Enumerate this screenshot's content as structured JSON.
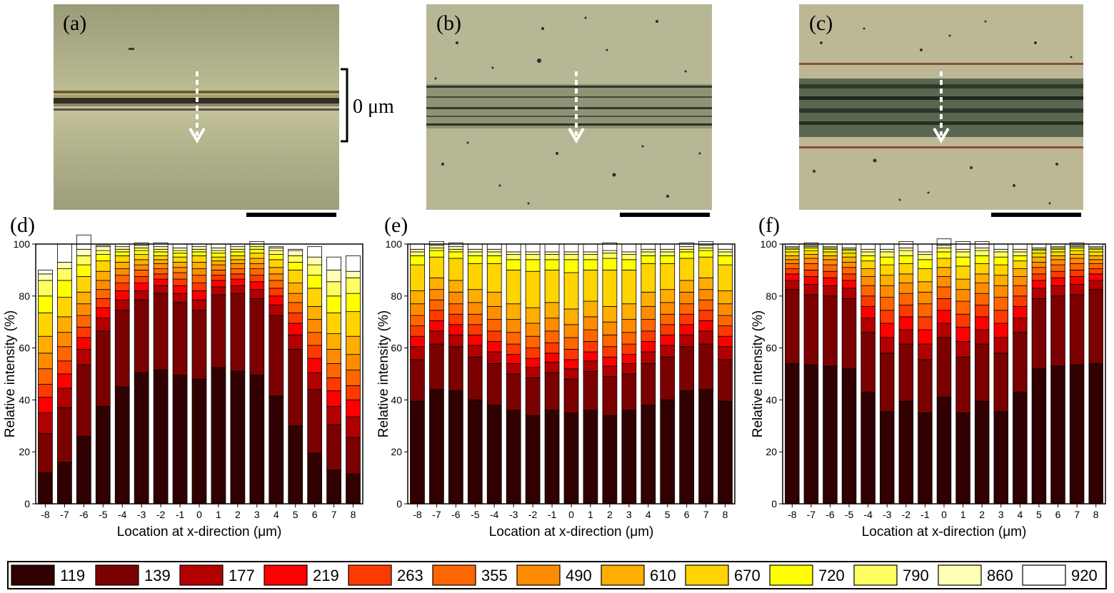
{
  "photos": [
    {
      "letter": "(a)",
      "bg": "#a4a582"
    },
    {
      "letter": "(b)",
      "bg": "#b6b594"
    },
    {
      "letter": "(c)",
      "bg": "#bdb996"
    }
  ],
  "scale_bar_label": "0 μm",
  "colors": [
    "#310000",
    "#7b0000",
    "#b20000",
    "#ff0000",
    "#ff3a00",
    "#ff6600",
    "#ff8c00",
    "#ffad00",
    "#ffd400",
    "#ffff00",
    "#ffff63",
    "#ffffb4",
    "#ffffff"
  ],
  "chart_data": [
    {
      "panel": "(d)",
      "type": "bar",
      "stacked": true,
      "title": "",
      "xlabel": "Location at x-direction (μm)",
      "ylabel": "Relative intensity (%)",
      "ylim": [
        0,
        100
      ],
      "yticks": [
        0,
        20,
        40,
        60,
        80,
        100
      ],
      "categories": [
        "-8",
        "-7",
        "-6",
        "-5",
        "-4",
        "-3",
        "-2",
        "-1",
        "0",
        "1",
        "2",
        "3",
        "4",
        "5",
        "6",
        "7",
        "8"
      ],
      "series": [
        {
          "name": "119",
          "values": [
            12,
            16,
            26,
            37.5,
            45,
            50.5,
            51.5,
            49.5,
            48,
            52.5,
            51,
            49.5,
            41.5,
            30,
            19.5,
            13,
            11.5
          ]
        },
        {
          "name": "139",
          "values": [
            15,
            21,
            27.5,
            29,
            29.5,
            28,
            29.5,
            28,
            26.5,
            28,
            30,
            29.5,
            31,
            29.5,
            24.5,
            17.5,
            14
          ]
        },
        {
          "name": "177",
          "values": [
            8,
            7.5,
            6,
            5,
            4,
            3.5,
            3,
            3.5,
            4,
            3,
            3,
            3.5,
            4,
            5.5,
            6.5,
            7,
            8
          ]
        },
        {
          "name": "219",
          "values": [
            6,
            5.5,
            4.5,
            4,
            3.5,
            3,
            2.5,
            3,
            3.5,
            2.5,
            2.5,
            3,
            3.5,
            4.5,
            5.5,
            6,
            6.5
          ]
        },
        {
          "name": "263",
          "values": [
            5,
            5,
            4,
            3.5,
            3,
            2.5,
            2,
            2.5,
            3,
            2,
            2,
            2.5,
            3,
            4,
            5,
            5,
            5.5
          ]
        },
        {
          "name": "355",
          "values": [
            6,
            5.5,
            4.5,
            3.5,
            3,
            2.5,
            2,
            2.5,
            3,
            2,
            2,
            2.5,
            3,
            4,
            5,
            5.5,
            6
          ]
        },
        {
          "name": "490",
          "values": [
            6,
            5.5,
            4.5,
            3.5,
            2.5,
            2,
            2,
            2,
            2.5,
            2,
            2,
            2,
            2.5,
            3.5,
            5,
            5.5,
            6
          ]
        },
        {
          "name": "610",
          "values": [
            6.5,
            6,
            4.5,
            3.5,
            2.5,
            2,
            1.5,
            2,
            2.5,
            1.5,
            1.5,
            2,
            2.5,
            4,
            5,
            6,
            7
          ]
        },
        {
          "name": "670",
          "values": [
            9,
            7.5,
            6,
            4,
            2.5,
            2,
            1.5,
            2,
            2.5,
            1.5,
            1.5,
            2,
            3,
            5,
            7,
            8,
            9.5
          ]
        },
        {
          "name": "720",
          "values": [
            6.5,
            6.5,
            4.5,
            2.5,
            1.5,
            1.5,
            1.5,
            1.5,
            1.5,
            1.5,
            1.5,
            1.5,
            2,
            3,
            5,
            6.5,
            7
          ]
        },
        {
          "name": "790",
          "values": [
            6,
            4.5,
            3.5,
            1.5,
            1,
            1,
            1,
            1,
            1,
            1,
            1,
            1,
            1.5,
            2.5,
            4,
            5.5,
            6
          ]
        },
        {
          "name": "860",
          "values": [
            2.5,
            2.5,
            2.5,
            1.5,
            1,
            1,
            1,
            1,
            1,
            1,
            1,
            1,
            1,
            2,
            3,
            4.5,
            2.5
          ]
        },
        {
          "name": "920",
          "values": [
            1.5,
            7,
            5.5,
            0.5,
            1,
            1,
            1.5,
            1.5,
            1,
            1.5,
            1,
            1,
            0.5,
            0.5,
            4,
            5,
            6
          ]
        }
      ]
    },
    {
      "panel": "(e)",
      "type": "bar",
      "stacked": true,
      "title": "",
      "xlabel": "Location at x-direction (μm)",
      "ylabel": "Relative intensity (%)",
      "ylim": [
        0,
        100
      ],
      "yticks": [
        0,
        20,
        40,
        60,
        80,
        100
      ],
      "categories": [
        "-8",
        "-7",
        "-6",
        "-5",
        "-4",
        "-3",
        "-2",
        "-1",
        "0",
        "1",
        "2",
        "3",
        "4",
        "5",
        "6",
        "7",
        "8"
      ],
      "series": [
        {
          "name": "119",
          "values": [
            39.5,
            44,
            43.5,
            40,
            38,
            36,
            34,
            36,
            35,
            36,
            34,
            36,
            38,
            40,
            43.5,
            44,
            39.5
          ]
        },
        {
          "name": "139",
          "values": [
            16,
            17.5,
            17,
            16.5,
            16,
            14,
            14.5,
            14.5,
            13,
            15,
            15,
            14,
            16,
            16.5,
            17,
            17.5,
            16
          ]
        },
        {
          "name": "177",
          "values": [
            5,
            5,
            4.5,
            4.5,
            4.5,
            4,
            4,
            4,
            4,
            4,
            4,
            4,
            4.5,
            4.5,
            4.5,
            5,
            5
          ]
        },
        {
          "name": "219",
          "values": [
            4,
            4,
            4,
            4,
            4,
            3.5,
            3.5,
            3.5,
            3.5,
            3.5,
            3.5,
            3.5,
            4,
            4,
            4,
            4,
            4
          ]
        },
        {
          "name": "263",
          "values": [
            4,
            4,
            4,
            4,
            4,
            4,
            4,
            4,
            4,
            4,
            4,
            4,
            4,
            4,
            4,
            4,
            4
          ]
        },
        {
          "name": "355",
          "values": [
            4,
            4,
            4,
            4,
            4.5,
            4.5,
            4.5,
            4.5,
            4.5,
            4.5,
            4.5,
            4.5,
            4.5,
            4,
            4,
            4,
            4
          ]
        },
        {
          "name": "490",
          "values": [
            4.5,
            4,
            4.5,
            4.5,
            5,
            5,
            5,
            5,
            5,
            5,
            5,
            5,
            5,
            4.5,
            4.5,
            4,
            4.5
          ]
        },
        {
          "name": "610",
          "values": [
            5,
            4.5,
            4.5,
            5,
            5.5,
            6,
            6,
            6,
            6,
            6,
            6,
            6,
            5.5,
            5,
            4.5,
            4.5,
            5
          ]
        },
        {
          "name": "670",
          "values": [
            10,
            8,
            8.5,
            10,
            11,
            13,
            14,
            12.5,
            14,
            12,
            14,
            13,
            11,
            10,
            8.5,
            8,
            10
          ]
        },
        {
          "name": "720",
          "values": [
            3.5,
            2.5,
            2.5,
            3,
            3,
            4,
            4.5,
            4,
            5,
            4,
            4.5,
            4,
            3,
            3,
            2.5,
            2.5,
            3.5
          ]
        },
        {
          "name": "790",
          "values": [
            1.5,
            1,
            1,
            1.5,
            1.5,
            2,
            2,
            2,
            2,
            2,
            2,
            2,
            1.5,
            1.5,
            1,
            1,
            1.5
          ]
        },
        {
          "name": "860",
          "values": [
            1,
            1,
            1,
            1,
            1,
            1,
            1,
            1,
            1,
            1,
            1,
            1,
            1,
            1,
            1,
            1,
            1
          ]
        },
        {
          "name": "920",
          "values": [
            2,
            1.5,
            1.5,
            2,
            2,
            3,
            3,
            3,
            3,
            3,
            3,
            3,
            2,
            2,
            1.5,
            1.5,
            2
          ]
        }
      ]
    },
    {
      "panel": "(f)",
      "type": "bar",
      "stacked": true,
      "title": "",
      "xlabel": "Location at x-direction (μm)",
      "ylabel": "Relative intensity (%)",
      "ylim": [
        0,
        100
      ],
      "yticks": [
        0,
        20,
        40,
        60,
        80,
        100
      ],
      "categories": [
        "-8",
        "-7",
        "-6",
        "-5",
        "-4",
        "-3",
        "-2",
        "-1",
        "0",
        "1",
        "2",
        "3",
        "4",
        "5",
        "6",
        "7",
        "8"
      ],
      "series": [
        {
          "name": "119",
          "values": [
            54,
            53.5,
            53,
            52,
            43,
            35.5,
            39.5,
            35,
            41,
            35,
            39.5,
            35.5,
            43,
            52,
            53,
            53.5,
            54
          ]
        },
        {
          "name": "139",
          "values": [
            28.5,
            27,
            27,
            27,
            23,
            22.5,
            22,
            20.5,
            23,
            21.5,
            22,
            22.5,
            23,
            27,
            27,
            27,
            28.5
          ]
        },
        {
          "name": "177",
          "values": [
            3.5,
            4,
            4,
            4,
            5.5,
            6,
            5.5,
            6,
            5.5,
            6,
            5.5,
            6,
            5.5,
            4,
            4,
            4,
            3.5
          ]
        },
        {
          "name": "219",
          "values": [
            2.5,
            3,
            3,
            3,
            4.5,
            5.5,
            5,
            5.5,
            5,
            5.5,
            5,
            5.5,
            4.5,
            3,
            3,
            3,
            2.5
          ]
        },
        {
          "name": "263",
          "values": [
            2,
            2.5,
            2.5,
            2.5,
            4,
            5,
            4.5,
            5,
            4.5,
            5,
            4.5,
            5,
            4,
            2.5,
            2.5,
            2.5,
            2
          ]
        },
        {
          "name": "355",
          "values": [
            2,
            2.5,
            2.5,
            2.5,
            4,
            5,
            4.5,
            5,
            4.5,
            5,
            4.5,
            5,
            4,
            2.5,
            2.5,
            2.5,
            2
          ]
        },
        {
          "name": "490",
          "values": [
            1.5,
            2,
            2,
            2,
            3.5,
            4.5,
            4,
            4.5,
            4,
            4.5,
            4,
            4.5,
            3.5,
            2,
            2,
            2,
            1.5
          ]
        },
        {
          "name": "610",
          "values": [
            1.5,
            1.5,
            1.5,
            2,
            3,
            4,
            3.5,
            4,
            3.5,
            4,
            3.5,
            4,
            3,
            2,
            1.5,
            1.5,
            1.5
          ]
        },
        {
          "name": "670",
          "values": [
            1.5,
            1.5,
            1.5,
            1.5,
            3,
            4,
            4,
            5,
            3.5,
            5,
            4,
            4,
            3,
            1.5,
            1.5,
            1.5,
            1.5
          ]
        },
        {
          "name": "720",
          "values": [
            1,
            1,
            1,
            1,
            2,
            3,
            3,
            3.5,
            2.5,
            3.5,
            3,
            3,
            2,
            1,
            1,
            1,
            1
          ]
        },
        {
          "name": "790",
          "values": [
            0.5,
            0.5,
            0.5,
            0.5,
            1.5,
            2,
            2,
            2,
            1.5,
            2,
            2,
            2,
            1.5,
            0.5,
            0.5,
            0.5,
            0.5
          ]
        },
        {
          "name": "860",
          "values": [
            0.5,
            0.5,
            0.5,
            0.5,
            1,
            1,
            1,
            1,
            1,
            1,
            1,
            1,
            1,
            0.5,
            0.5,
            0.5,
            0.5
          ]
        },
        {
          "name": "920",
          "values": [
            1,
            1,
            1,
            1.5,
            2,
            2,
            2.5,
            3,
            2.5,
            3,
            2.5,
            2,
            2,
            1.5,
            1,
            1,
            1
          ]
        }
      ]
    }
  ],
  "legend": [
    {
      "label": "119"
    },
    {
      "label": "139"
    },
    {
      "label": "177"
    },
    {
      "label": "219"
    },
    {
      "label": "263"
    },
    {
      "label": "355"
    },
    {
      "label": "490"
    },
    {
      "label": "610"
    },
    {
      "label": "670"
    },
    {
      "label": "720"
    },
    {
      "label": "790"
    },
    {
      "label": "860"
    },
    {
      "label": "920"
    }
  ]
}
